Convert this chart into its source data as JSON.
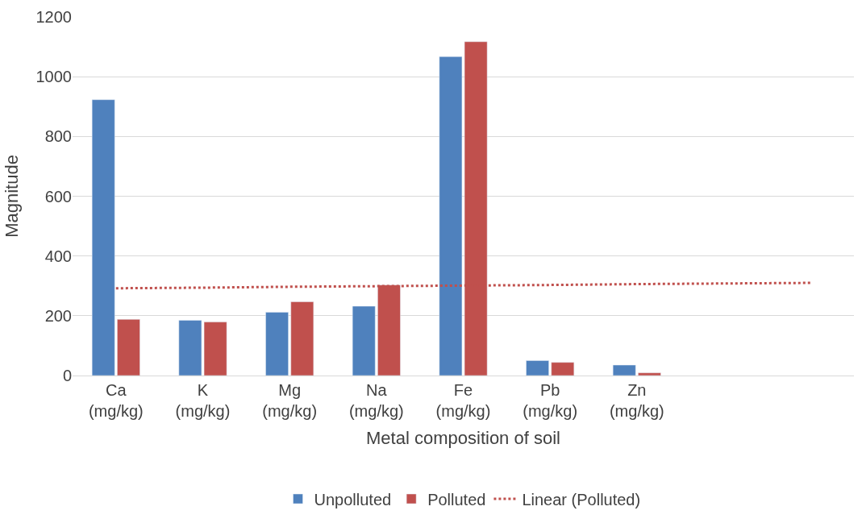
{
  "chart_data": {
    "type": "bar",
    "xlabel": "Metal composition of soil",
    "ylabel": "Magnitude",
    "categories": [
      "Ca (mg/kg)",
      "K (mg/kg)",
      "Mg (mg/kg)",
      "Na (mg/kg)",
      "Fe (mg/kg)",
      "Pb (mg/kg)",
      "Zn (mg/kg)",
      null,
      null
    ],
    "series": [
      {
        "name": "Unpolluted",
        "color": "#4f81bd",
        "values": [
          923,
          185,
          212,
          232,
          1067,
          50,
          35,
          null,
          null
        ]
      },
      {
        "name": "Polluted",
        "color": "#c0504d",
        "values": [
          188,
          179,
          247,
          303,
          1117,
          44,
          9,
          null,
          null
        ]
      },
      {
        "name": "Linear (Polluted)",
        "type": "line",
        "color": "#c0504d",
        "line_style": "dotted",
        "marker": "none",
        "values": [
          292,
          294,
          297,
          299,
          301,
          303,
          306,
          308,
          310
        ]
      }
    ],
    "ylim": [
      0,
      1200
    ],
    "yticks": [
      0,
      200,
      400,
      600,
      800,
      1000,
      1200
    ],
    "grid": "y",
    "legend": "bottom"
  }
}
